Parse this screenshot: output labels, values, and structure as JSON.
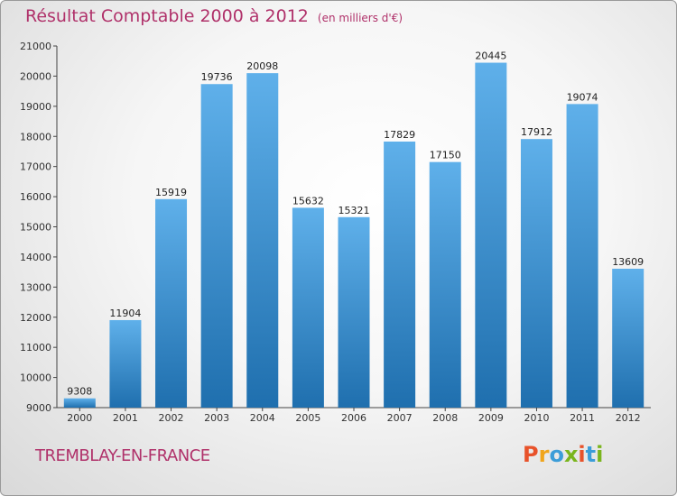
{
  "title": "Résultat Comptable 2000 à 2012",
  "unit": "(en milliers d'€)",
  "city": "TREMBLAY-EN-FRANCE",
  "logo": {
    "text": "Proxiti",
    "colors": [
      "#e8522a",
      "#f0a51c",
      "#3c9dd8",
      "#7ab51d",
      "#e8522a",
      "#3c9dd8",
      "#7ab51d"
    ]
  },
  "colors": {
    "bar_top": "#5fb0ea",
    "bar_bottom": "#1f6fae",
    "title": "#b0316a"
  },
  "chart_data": {
    "type": "bar",
    "title": "Résultat Comptable 2000 à 2012",
    "ylabel": "(en milliers d'€)",
    "xlabel": "",
    "categories": [
      "2000",
      "2001",
      "2002",
      "2003",
      "2004",
      "2005",
      "2006",
      "2007",
      "2008",
      "2009",
      "2010",
      "2011",
      "2012"
    ],
    "values": [
      9308,
      11904,
      15919,
      19736,
      20098,
      15632,
      15321,
      17829,
      17150,
      20445,
      17912,
      19074,
      13609
    ],
    "ylim": [
      9000,
      21000
    ],
    "yticks": [
      9000,
      10000,
      11000,
      12000,
      13000,
      14000,
      15000,
      16000,
      17000,
      18000,
      19000,
      20000,
      21000
    ],
    "grid": false
  }
}
